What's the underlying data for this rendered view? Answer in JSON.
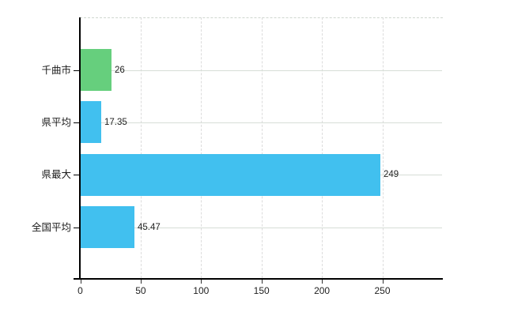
{
  "chart_data": {
    "type": "bar",
    "orientation": "horizontal",
    "title": "",
    "categories": [
      "千曲市",
      "県平均",
      "県最大",
      "全国平均"
    ],
    "values": [
      26,
      17.35,
      249,
      45.47
    ],
    "value_labels": [
      "26",
      "17.35",
      "249",
      "45.47"
    ],
    "bar_colors": [
      "#66cf7d",
      "#41c0ef",
      "#41c0ef",
      "#41c0ef"
    ],
    "x_ticks": [
      "0",
      "50",
      "100",
      "150",
      "200",
      "250"
    ],
    "x_tick_values": [
      0,
      50,
      100,
      150,
      200,
      250
    ],
    "xlim": [
      0,
      300
    ],
    "xlabel": "",
    "ylabel": "",
    "grid": true,
    "legend": false
  },
  "colors": {
    "background": "#ffffff",
    "axis": "#000000",
    "tick": "#333333",
    "grid_vertical": "#dcdcdc",
    "grid_horizontal": "#d6ddd6",
    "plot_top_border": "#cfd6cf",
    "highlight_bar": "#66cf7d",
    "default_bar": "#41c0ef",
    "text": "#1a1a1a"
  }
}
